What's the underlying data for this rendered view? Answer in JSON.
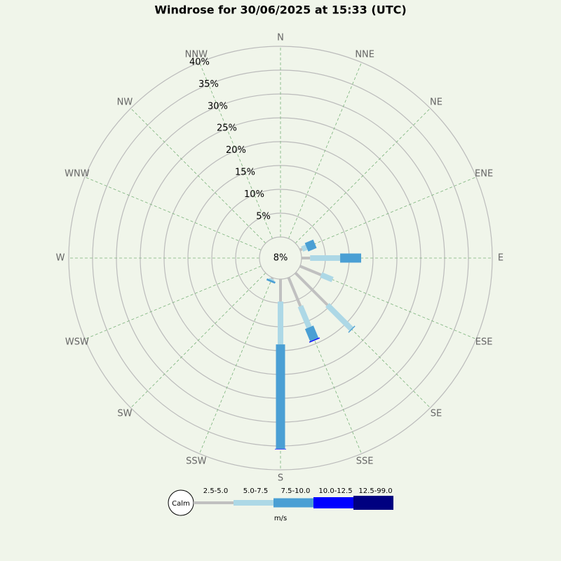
{
  "chart_data": {
    "type": "windrose",
    "title": "Windrose for 30/06/2025 at 15:33 (UTC)",
    "categories": [
      "N",
      "NNE",
      "NE",
      "ENE",
      "E",
      "ESE",
      "SE",
      "SSE",
      "S",
      "SSW",
      "SW",
      "WSW",
      "W",
      "WNW",
      "NW",
      "NNW"
    ],
    "calm": {
      "value": 8,
      "label": "8%"
    },
    "calm_name": "Calm",
    "unit": "m/s",
    "rlim": [
      0,
      40
    ],
    "rticks": [
      {
        "value": 5,
        "label": "5%"
      },
      {
        "value": 10,
        "label": "10%"
      },
      {
        "value": 15,
        "label": "15%"
      },
      {
        "value": 20,
        "label": "20%"
      },
      {
        "value": 25,
        "label": "25%"
      },
      {
        "value": 30,
        "label": "30%"
      },
      {
        "value": 35,
        "label": "35%"
      },
      {
        "value": 40,
        "label": "40%"
      }
    ],
    "series": [
      {
        "name": "2.5-5.0",
        "color": "#c0c0c0",
        "values": [
          0,
          0,
          0,
          0.5,
          1.8,
          4.8,
          9.5,
          6.5,
          4.7,
          0.3,
          0,
          0,
          0,
          0,
          0,
          0
        ]
      },
      {
        "name": "5.0-7.5",
        "color": "#add8e6",
        "values": [
          0,
          0,
          0,
          1.0,
          6.3,
          2.6,
          7.1,
          4.8,
          9.0,
          0.3,
          0,
          0,
          0,
          0,
          0,
          0
        ]
      },
      {
        "name": "7.5-10.0",
        "color": "#4a9fd4",
        "values": [
          0,
          0,
          0,
          1.9,
          4.4,
          0,
          0.2,
          2.8,
          21.9,
          0.4,
          0,
          0,
          0,
          0,
          0,
          0
        ]
      },
      {
        "name": "10.0-12.5",
        "color": "#0000ff",
        "values": [
          0,
          0,
          0,
          0,
          0,
          0,
          0,
          0.2,
          0.1,
          0,
          0,
          0,
          0,
          0,
          0,
          0
        ]
      },
      {
        "name": "12.5-99.0",
        "color": "#000080",
        "values": [
          0,
          0,
          0,
          0,
          0,
          0,
          0,
          0,
          0,
          0,
          0,
          0,
          0,
          0,
          0,
          0
        ]
      }
    ]
  }
}
